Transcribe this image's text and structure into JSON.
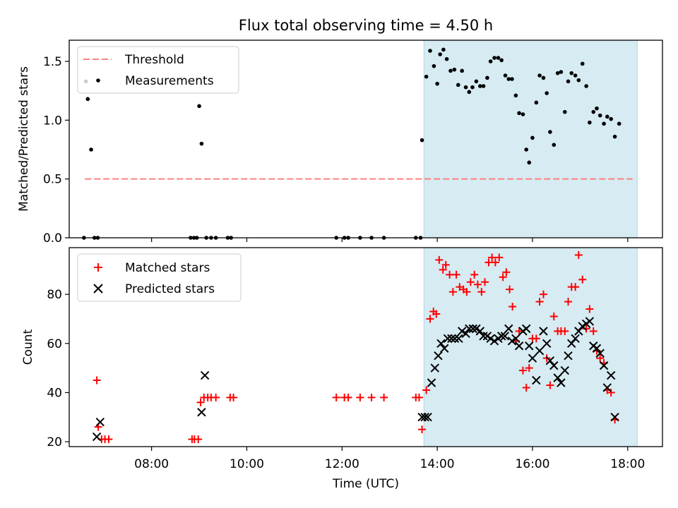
{
  "chart_data": [
    {
      "type": "scatter",
      "title": "Flux total observing time = 4.50 h",
      "xlabel": "",
      "ylabel": "Matched/Predicted stars",
      "xlim": [
        6.27,
        18.73
      ],
      "ylim": [
        0.0,
        1.68
      ],
      "yticks": [
        0.0,
        0.5,
        1.0,
        1.5
      ],
      "yticklabels": [
        "0.0",
        "0.5",
        "1.0",
        "1.5"
      ],
      "shaded_region": {
        "x_start": 13.72,
        "x_end": 18.2,
        "color": "#add8e6"
      },
      "legend_position": "upper left",
      "threshold": {
        "name": "Threshold",
        "value": 0.5,
        "x_start": 6.6,
        "x_end": 18.1,
        "color": "#ff7f7f",
        "style": "dashed"
      },
      "series": [
        {
          "name": "Measurements",
          "color": "#000000",
          "marker": "circle",
          "points": [
            {
              "x": 6.58,
              "y": 0.0
            },
            {
              "x": 6.62,
              "y": 1.33
            },
            {
              "x": 6.66,
              "y": 1.18
            },
            {
              "x": 6.73,
              "y": 0.75
            },
            {
              "x": 6.8,
              "y": 0.0
            },
            {
              "x": 6.87,
              "y": 0.0
            },
            {
              "x": 8.82,
              "y": 0.0
            },
            {
              "x": 8.89,
              "y": 0.0
            },
            {
              "x": 8.95,
              "y": 0.0
            },
            {
              "x": 9.0,
              "y": 1.12
            },
            {
              "x": 9.05,
              "y": 0.8
            },
            {
              "x": 9.15,
              "y": 0.0
            },
            {
              "x": 9.25,
              "y": 0.0
            },
            {
              "x": 9.35,
              "y": 0.0
            },
            {
              "x": 9.6,
              "y": 0.0
            },
            {
              "x": 9.67,
              "y": 0.0
            },
            {
              "x": 11.88,
              "y": 0.0
            },
            {
              "x": 12.05,
              "y": 0.0
            },
            {
              "x": 12.13,
              "y": 0.0
            },
            {
              "x": 12.38,
              "y": 0.0
            },
            {
              "x": 12.62,
              "y": 0.0
            },
            {
              "x": 12.88,
              "y": 0.0
            },
            {
              "x": 13.55,
              "y": 0.0
            },
            {
              "x": 13.65,
              "y": 0.0
            },
            {
              "x": 13.68,
              "y": 0.83
            },
            {
              "x": 13.77,
              "y": 1.37
            },
            {
              "x": 13.85,
              "y": 1.59
            },
            {
              "x": 13.93,
              "y": 1.46
            },
            {
              "x": 14.0,
              "y": 1.31
            },
            {
              "x": 14.06,
              "y": 1.56
            },
            {
              "x": 14.13,
              "y": 1.6
            },
            {
              "x": 14.2,
              "y": 1.52
            },
            {
              "x": 14.28,
              "y": 1.42
            },
            {
              "x": 14.36,
              "y": 1.43
            },
            {
              "x": 14.44,
              "y": 1.3
            },
            {
              "x": 14.52,
              "y": 1.42
            },
            {
              "x": 14.6,
              "y": 1.28
            },
            {
              "x": 14.67,
              "y": 1.24
            },
            {
              "x": 14.74,
              "y": 1.28
            },
            {
              "x": 14.82,
              "y": 1.33
            },
            {
              "x": 14.9,
              "y": 1.29
            },
            {
              "x": 14.97,
              "y": 1.29
            },
            {
              "x": 15.05,
              "y": 1.36
            },
            {
              "x": 15.12,
              "y": 1.5
            },
            {
              "x": 15.2,
              "y": 1.53
            },
            {
              "x": 15.28,
              "y": 1.53
            },
            {
              "x": 15.35,
              "y": 1.51
            },
            {
              "x": 15.43,
              "y": 1.38
            },
            {
              "x": 15.5,
              "y": 1.35
            },
            {
              "x": 15.57,
              "y": 1.35
            },
            {
              "x": 15.65,
              "y": 1.21
            },
            {
              "x": 15.72,
              "y": 1.06
            },
            {
              "x": 15.8,
              "y": 1.05
            },
            {
              "x": 15.87,
              "y": 0.75
            },
            {
              "x": 15.93,
              "y": 0.64
            },
            {
              "x": 16.0,
              "y": 0.85
            },
            {
              "x": 16.08,
              "y": 1.15
            },
            {
              "x": 16.15,
              "y": 1.38
            },
            {
              "x": 16.23,
              "y": 1.36
            },
            {
              "x": 16.3,
              "y": 1.23
            },
            {
              "x": 16.37,
              "y": 0.9
            },
            {
              "x": 16.45,
              "y": 0.79
            },
            {
              "x": 16.53,
              "y": 1.4
            },
            {
              "x": 16.6,
              "y": 1.41
            },
            {
              "x": 16.68,
              "y": 1.07
            },
            {
              "x": 16.75,
              "y": 1.33
            },
            {
              "x": 16.82,
              "y": 1.4
            },
            {
              "x": 16.9,
              "y": 1.38
            },
            {
              "x": 16.97,
              "y": 1.34
            },
            {
              "x": 17.05,
              "y": 1.48
            },
            {
              "x": 17.13,
              "y": 1.29
            },
            {
              "x": 17.2,
              "y": 0.98
            },
            {
              "x": 17.28,
              "y": 1.07
            },
            {
              "x": 17.35,
              "y": 1.1
            },
            {
              "x": 17.42,
              "y": 1.04
            },
            {
              "x": 17.5,
              "y": 0.97
            },
            {
              "x": 17.57,
              "y": 1.03
            },
            {
              "x": 17.65,
              "y": 1.01
            },
            {
              "x": 17.73,
              "y": 0.86
            },
            {
              "x": 17.82,
              "y": 0.97
            }
          ]
        }
      ]
    },
    {
      "type": "scatter",
      "title": "",
      "xlabel": "Time (UTC)",
      "ylabel": "Count",
      "xlim": [
        6.27,
        18.73
      ],
      "ylim": [
        18.0,
        99.0
      ],
      "xticks": [
        8,
        10,
        12,
        14,
        16,
        18
      ],
      "xticklabels": [
        "08:00",
        "10:00",
        "12:00",
        "14:00",
        "16:00",
        "18:00"
      ],
      "yticks": [
        20,
        40,
        60,
        80
      ],
      "yticklabels": [
        "20",
        "40",
        "60",
        "80"
      ],
      "shaded_region": {
        "x_start": 13.72,
        "x_end": 18.2,
        "color": "#add8e6"
      },
      "legend_position": "upper left",
      "series": [
        {
          "name": "Matched stars",
          "color": "#ff0000",
          "marker": "plus",
          "points": [
            {
              "x": 6.85,
              "y": 45
            },
            {
              "x": 6.88,
              "y": 26
            },
            {
              "x": 6.95,
              "y": 21
            },
            {
              "x": 7.02,
              "y": 21
            },
            {
              "x": 7.1,
              "y": 21
            },
            {
              "x": 8.85,
              "y": 21
            },
            {
              "x": 8.9,
              "y": 21
            },
            {
              "x": 8.98,
              "y": 21
            },
            {
              "x": 9.03,
              "y": 36
            },
            {
              "x": 9.1,
              "y": 38
            },
            {
              "x": 9.18,
              "y": 38
            },
            {
              "x": 9.25,
              "y": 38
            },
            {
              "x": 9.35,
              "y": 38
            },
            {
              "x": 9.65,
              "y": 38
            },
            {
              "x": 9.72,
              "y": 38
            },
            {
              "x": 11.88,
              "y": 38
            },
            {
              "x": 12.05,
              "y": 38
            },
            {
              "x": 12.13,
              "y": 38
            },
            {
              "x": 12.38,
              "y": 38
            },
            {
              "x": 12.62,
              "y": 38
            },
            {
              "x": 12.88,
              "y": 38
            },
            {
              "x": 13.55,
              "y": 38
            },
            {
              "x": 13.62,
              "y": 38
            },
            {
              "x": 13.68,
              "y": 25
            },
            {
              "x": 13.77,
              "y": 41
            },
            {
              "x": 13.85,
              "y": 70
            },
            {
              "x": 13.92,
              "y": 73
            },
            {
              "x": 13.98,
              "y": 72
            },
            {
              "x": 14.04,
              "y": 94
            },
            {
              "x": 14.12,
              "y": 90
            },
            {
              "x": 14.18,
              "y": 92
            },
            {
              "x": 14.26,
              "y": 88
            },
            {
              "x": 14.33,
              "y": 81
            },
            {
              "x": 14.4,
              "y": 88
            },
            {
              "x": 14.47,
              "y": 83
            },
            {
              "x": 14.55,
              "y": 82
            },
            {
              "x": 14.62,
              "y": 81
            },
            {
              "x": 14.7,
              "y": 85
            },
            {
              "x": 14.78,
              "y": 88
            },
            {
              "x": 14.85,
              "y": 84
            },
            {
              "x": 14.93,
              "y": 81
            },
            {
              "x": 15.0,
              "y": 85
            },
            {
              "x": 15.08,
              "y": 93
            },
            {
              "x": 15.15,
              "y": 95
            },
            {
              "x": 15.22,
              "y": 93
            },
            {
              "x": 15.3,
              "y": 95
            },
            {
              "x": 15.38,
              "y": 87
            },
            {
              "x": 15.45,
              "y": 89
            },
            {
              "x": 15.52,
              "y": 82
            },
            {
              "x": 15.58,
              "y": 75
            },
            {
              "x": 15.65,
              "y": 61
            },
            {
              "x": 15.72,
              "y": 65
            },
            {
              "x": 15.8,
              "y": 49
            },
            {
              "x": 15.87,
              "y": 42
            },
            {
              "x": 15.93,
              "y": 50
            },
            {
              "x": 16.0,
              "y": 62
            },
            {
              "x": 16.08,
              "y": 62
            },
            {
              "x": 16.15,
              "y": 77
            },
            {
              "x": 16.23,
              "y": 80
            },
            {
              "x": 16.3,
              "y": 54
            },
            {
              "x": 16.37,
              "y": 43
            },
            {
              "x": 16.45,
              "y": 71
            },
            {
              "x": 16.53,
              "y": 65
            },
            {
              "x": 16.6,
              "y": 65
            },
            {
              "x": 16.68,
              "y": 65
            },
            {
              "x": 16.75,
              "y": 77
            },
            {
              "x": 16.82,
              "y": 83
            },
            {
              "x": 16.9,
              "y": 83
            },
            {
              "x": 16.97,
              "y": 96
            },
            {
              "x": 17.05,
              "y": 86
            },
            {
              "x": 17.13,
              "y": 66
            },
            {
              "x": 17.2,
              "y": 74
            },
            {
              "x": 17.28,
              "y": 65
            },
            {
              "x": 17.35,
              "y": 57
            },
            {
              "x": 17.42,
              "y": 54
            },
            {
              "x": 17.5,
              "y": 52
            },
            {
              "x": 17.57,
              "y": 41
            },
            {
              "x": 17.65,
              "y": 40
            },
            {
              "x": 17.73,
              "y": 29
            }
          ]
        },
        {
          "name": "Predicted stars",
          "color": "#000000",
          "marker": "x",
          "points": [
            {
              "x": 6.85,
              "y": 22
            },
            {
              "x": 6.92,
              "y": 28
            },
            {
              "x": 9.05,
              "y": 32
            },
            {
              "x": 9.12,
              "y": 47
            },
            {
              "x": 13.68,
              "y": 30
            },
            {
              "x": 13.74,
              "y": 30
            },
            {
              "x": 13.8,
              "y": 30
            },
            {
              "x": 13.88,
              "y": 44
            },
            {
              "x": 13.95,
              "y": 50
            },
            {
              "x": 14.02,
              "y": 55
            },
            {
              "x": 14.08,
              "y": 60
            },
            {
              "x": 14.15,
              "y": 58
            },
            {
              "x": 14.22,
              "y": 62
            },
            {
              "x": 14.3,
              "y": 62
            },
            {
              "x": 14.37,
              "y": 62
            },
            {
              "x": 14.45,
              "y": 62
            },
            {
              "x": 14.52,
              "y": 65
            },
            {
              "x": 14.6,
              "y": 64
            },
            {
              "x": 14.67,
              "y": 66
            },
            {
              "x": 14.75,
              "y": 66
            },
            {
              "x": 14.82,
              "y": 66
            },
            {
              "x": 14.9,
              "y": 65
            },
            {
              "x": 14.97,
              "y": 63
            },
            {
              "x": 15.05,
              "y": 63
            },
            {
              "x": 15.12,
              "y": 62
            },
            {
              "x": 15.2,
              "y": 61
            },
            {
              "x": 15.28,
              "y": 62
            },
            {
              "x": 15.35,
              "y": 63
            },
            {
              "x": 15.42,
              "y": 63
            },
            {
              "x": 15.5,
              "y": 66
            },
            {
              "x": 15.57,
              "y": 61
            },
            {
              "x": 15.65,
              "y": 62
            },
            {
              "x": 15.72,
              "y": 59
            },
            {
              "x": 15.8,
              "y": 65
            },
            {
              "x": 15.87,
              "y": 66
            },
            {
              "x": 15.93,
              "y": 59
            },
            {
              "x": 16.0,
              "y": 54
            },
            {
              "x": 16.08,
              "y": 45
            },
            {
              "x": 16.15,
              "y": 57
            },
            {
              "x": 16.23,
              "y": 65
            },
            {
              "x": 16.3,
              "y": 60
            },
            {
              "x": 16.37,
              "y": 53
            },
            {
              "x": 16.45,
              "y": 51
            },
            {
              "x": 16.53,
              "y": 46
            },
            {
              "x": 16.6,
              "y": 44
            },
            {
              "x": 16.68,
              "y": 49
            },
            {
              "x": 16.75,
              "y": 55
            },
            {
              "x": 16.82,
              "y": 60
            },
            {
              "x": 16.9,
              "y": 62
            },
            {
              "x": 16.97,
              "y": 65
            },
            {
              "x": 17.05,
              "y": 67
            },
            {
              "x": 17.13,
              "y": 68
            },
            {
              "x": 17.2,
              "y": 69
            },
            {
              "x": 17.28,
              "y": 59
            },
            {
              "x": 17.35,
              "y": 58
            },
            {
              "x": 17.42,
              "y": 56
            },
            {
              "x": 17.5,
              "y": 51
            },
            {
              "x": 17.57,
              "y": 42
            },
            {
              "x": 17.65,
              "y": 47
            },
            {
              "x": 17.73,
              "y": 30
            }
          ]
        }
      ]
    }
  ]
}
